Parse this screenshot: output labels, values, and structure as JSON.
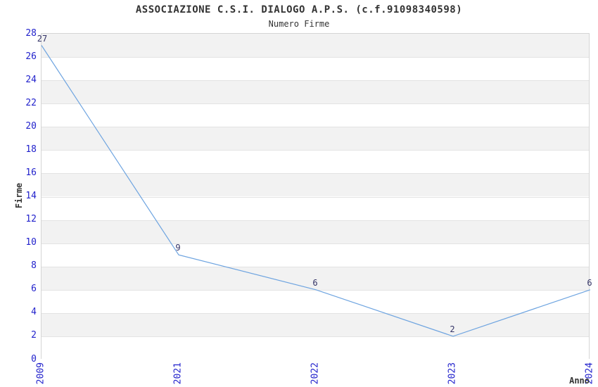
{
  "chart": {
    "title": "ASSOCIAZIONE C.S.I. DIALOGO A.P.S. (c.f.91098340598)",
    "subtitle": "Numero Firme",
    "xlabel": "Anno",
    "ylabel": "Firme"
  },
  "chart_data": {
    "type": "line",
    "title": "ASSOCIAZIONE C.S.I. DIALOGO A.P.S. (c.f.91098340598)",
    "subtitle": "Numero Firme",
    "xlabel": "Anno",
    "ylabel": "Firme",
    "categories": [
      "2009",
      "2021",
      "2022",
      "2023",
      "2024"
    ],
    "series": [
      {
        "name": "Numero Firme",
        "values": [
          27,
          9,
          6,
          2,
          6
        ]
      }
    ],
    "data_labels": [
      "27",
      "9",
      "6",
      "2",
      "6"
    ],
    "ylim": [
      0,
      28
    ],
    "ytick_step": 2,
    "grid": "horizontal",
    "legend": "none",
    "colors": {
      "line": "#6EA4E0",
      "tick_label": "#2222CC",
      "data_label": "#333366",
      "band_light": "#FFFFFF",
      "band_dark": "#F2F2F2",
      "gridline": "#E3E3E3",
      "plot_border": "#D5D5D5",
      "text": "#333333"
    }
  }
}
